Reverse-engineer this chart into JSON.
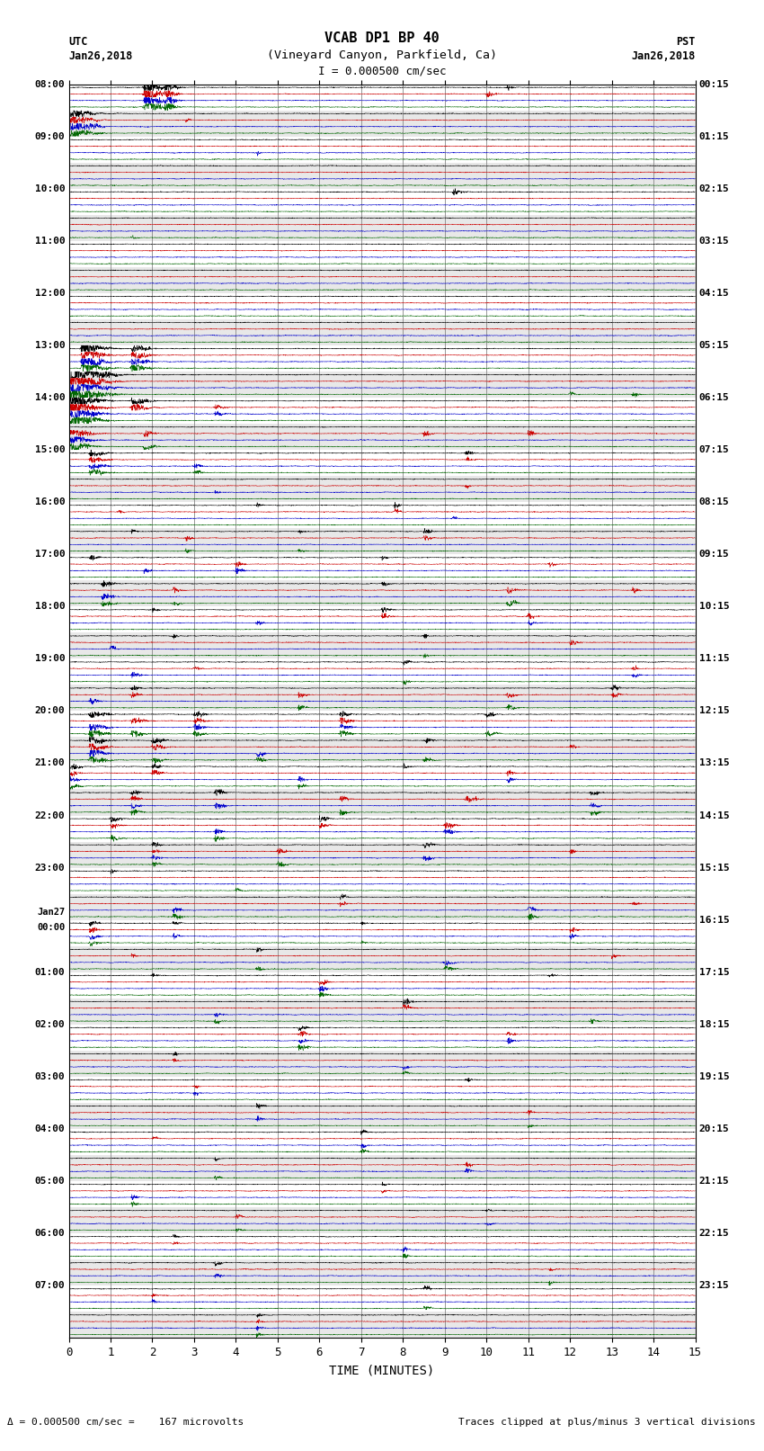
{
  "title_line1": "VCAB DP1 BP 40",
  "title_line2": "(Vineyard Canyon, Parkfield, Ca)",
  "scale_label": "I = 0.000500 cm/sec",
  "utc_label": "UTC",
  "pst_label": "PST",
  "date_left": "Jan26,2018",
  "date_right": "Jan26,2018",
  "xlabel": "TIME (MINUTES)",
  "footer_left": "= 0.000500 cm/sec =    167 microvolts",
  "footer_right": "Traces clipped at plus/minus 3 vertical divisions",
  "xlim": [
    0,
    15
  ],
  "xticks": [
    0,
    1,
    2,
    3,
    4,
    5,
    6,
    7,
    8,
    9,
    10,
    11,
    12,
    13,
    14,
    15
  ],
  "n_rows": 48,
  "channel_colors": [
    "#000000",
    "#cc0000",
    "#0000cc",
    "#006600"
  ],
  "bg_color": "white",
  "figsize": [
    8.5,
    16.13
  ],
  "dpi": 100,
  "left_times": [
    "08:00",
    "",
    "09:00",
    "",
    "10:00",
    "",
    "11:00",
    "",
    "12:00",
    "",
    "13:00",
    "",
    "14:00",
    "",
    "15:00",
    "",
    "16:00",
    "",
    "17:00",
    "",
    "18:00",
    "",
    "19:00",
    "",
    "20:00",
    "",
    "21:00",
    "",
    "22:00",
    "",
    "23:00",
    "",
    "Jan27\n00:00",
    "",
    "01:00",
    "",
    "02:00",
    "",
    "03:00",
    "",
    "04:00",
    "",
    "05:00",
    "",
    "06:00",
    "",
    "07:00",
    ""
  ],
  "right_times": [
    "00:15",
    "",
    "01:15",
    "",
    "02:15",
    "",
    "03:15",
    "",
    "04:15",
    "",
    "05:15",
    "",
    "06:15",
    "",
    "07:15",
    "",
    "08:15",
    "",
    "09:15",
    "",
    "10:15",
    "",
    "11:15",
    "",
    "12:15",
    "",
    "13:15",
    "",
    "14:15",
    "",
    "15:15",
    "",
    "16:15",
    "",
    "17:15",
    "",
    "18:15",
    "",
    "19:15",
    "",
    "20:15",
    "",
    "21:15",
    "",
    "22:15",
    "",
    "23:15",
    ""
  ]
}
